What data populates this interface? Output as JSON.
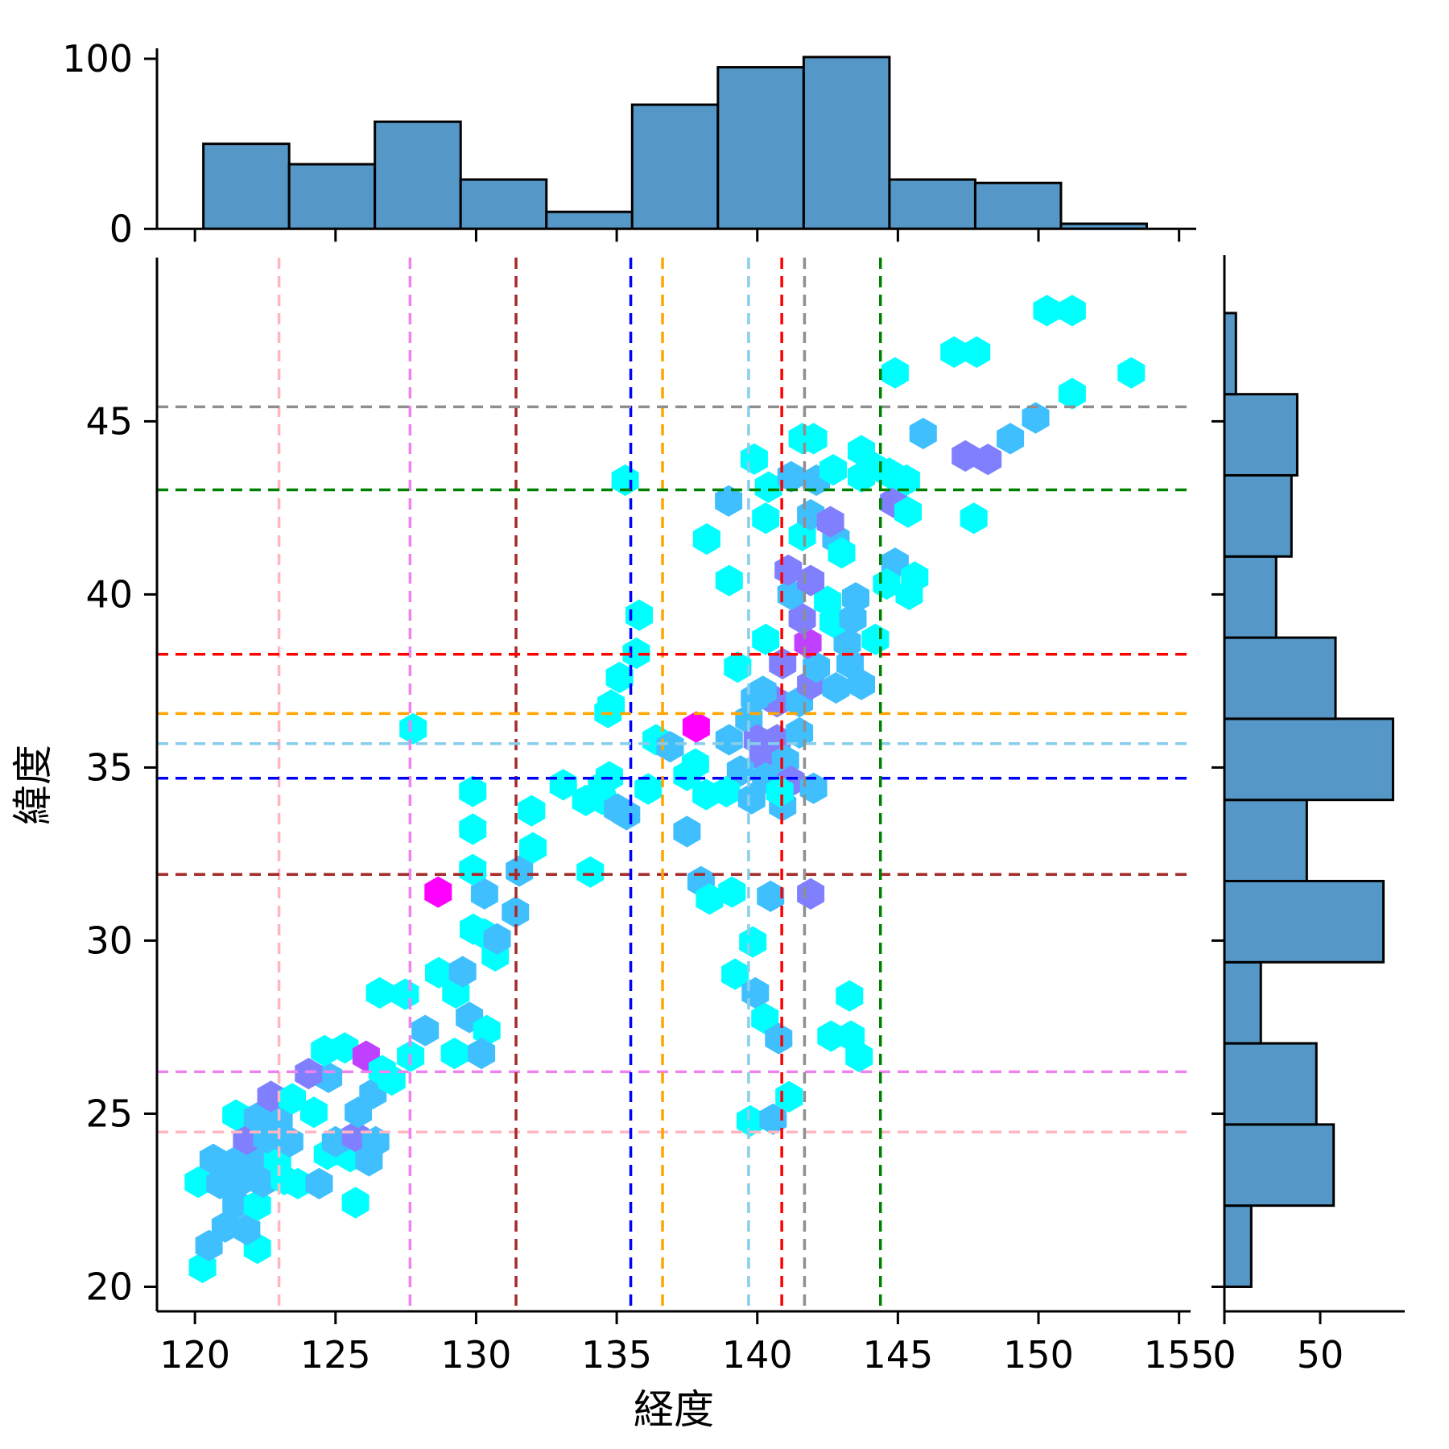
{
  "axes": {
    "xlabel": "経度",
    "ylabel": "緯度"
  },
  "chart_data": [
    {
      "type": "bar",
      "id": "top-marginal-histogram",
      "orientation": "vertical",
      "xlabel": "経度",
      "ylabel": "",
      "bin_start": 120.3,
      "bin_width": 3.05,
      "values": [
        50,
        38,
        63,
        29,
        10,
        73,
        95,
        101,
        29,
        27,
        3
      ],
      "y_ticks": [
        0,
        100
      ],
      "ylim": [
        0,
        106
      ],
      "bar_color": "#5598C7",
      "bar_edge_color": "#000000",
      "grid": false
    },
    {
      "type": "hexbin",
      "id": "joint-hexbin",
      "title": "",
      "xlabel": "経度",
      "ylabel": "緯度",
      "xlim": [
        118.65,
        155.41
      ],
      "ylim": [
        19.29,
        49.73
      ],
      "x_ticks": [
        120,
        125,
        130,
        135,
        140,
        145,
        150,
        155
      ],
      "y_ticks": [
        20,
        25,
        30,
        35,
        40,
        45
      ],
      "grid": false,
      "colormap": "cool",
      "level_colors": {
        "1": "#00FFFF",
        "2": "#40BFFF",
        "3": "#8080FF",
        "4": "#BF40FF",
        "5": "#FF00FF"
      },
      "hex_width_lon": 0.973,
      "reference_lines": [
        {
          "color": "#FFB6C1",
          "x": 122.99,
          "y": 24.47
        },
        {
          "color": "#EE82EE",
          "x": 127.65,
          "y": 26.21
        },
        {
          "color": "#A52A2A",
          "x": 131.42,
          "y": 31.91
        },
        {
          "color": "#0000FF",
          "x": 135.5,
          "y": 34.69
        },
        {
          "color": "#FFA500",
          "x": 136.63,
          "y": 36.56
        },
        {
          "color": "#87CEEB",
          "x": 139.69,
          "y": 35.69
        },
        {
          "color": "#FF0000",
          "x": 140.87,
          "y": 38.27
        },
        {
          "color": "#8F8F8F",
          "x": 141.68,
          "y": 45.42
        },
        {
          "color": "#008000",
          "x": 144.38,
          "y": 43.02
        }
      ],
      "points": [
        [
          120.27,
          20.56,
          1
        ],
        [
          120.5,
          21.19,
          2
        ],
        [
          122.22,
          21.11,
          1
        ],
        [
          121.08,
          21.73,
          2
        ],
        [
          121.84,
          21.65,
          2
        ],
        [
          121.46,
          22.39,
          2
        ],
        [
          122.22,
          22.35,
          1
        ],
        [
          120.12,
          23.02,
          1
        ],
        [
          120.89,
          22.98,
          2
        ],
        [
          121.65,
          23.06,
          2
        ],
        [
          122.41,
          23.02,
          2
        ],
        [
          123.18,
          23.1,
          1
        ],
        [
          123.66,
          22.98,
          1
        ],
        [
          124.42,
          22.98,
          2
        ],
        [
          125.71,
          22.43,
          1
        ],
        [
          120.65,
          23.68,
          2
        ],
        [
          121.41,
          23.6,
          2
        ],
        [
          122.18,
          23.72,
          2
        ],
        [
          122.94,
          23.68,
          1
        ],
        [
          124.71,
          23.83,
          1
        ],
        [
          125.52,
          23.76,
          1
        ],
        [
          126.19,
          23.64,
          2
        ],
        [
          121.84,
          24.26,
          3
        ],
        [
          122.56,
          24.3,
          2
        ],
        [
          123.37,
          24.19,
          2
        ],
        [
          125.0,
          24.19,
          2
        ],
        [
          125.71,
          24.34,
          3
        ],
        [
          126.43,
          24.19,
          2
        ],
        [
          121.46,
          24.96,
          1
        ],
        [
          122.22,
          24.88,
          2
        ],
        [
          122.99,
          24.81,
          2
        ],
        [
          124.23,
          25.04,
          1
        ],
        [
          125.81,
          25.04,
          2
        ],
        [
          122.7,
          25.5,
          3
        ],
        [
          123.46,
          25.43,
          1
        ],
        [
          124.75,
          26.05,
          2
        ],
        [
          126.33,
          25.58,
          2
        ],
        [
          127.0,
          25.97,
          1
        ],
        [
          124.04,
          26.16,
          3
        ],
        [
          124.61,
          26.82,
          1
        ],
        [
          125.33,
          26.9,
          1
        ],
        [
          126.09,
          26.66,
          4
        ],
        [
          126.66,
          26.24,
          1
        ],
        [
          127.67,
          26.66,
          1
        ],
        [
          128.19,
          27.4,
          2
        ],
        [
          129.76,
          27.78,
          2
        ],
        [
          130.38,
          27.4,
          1
        ],
        [
          129.23,
          26.74,
          1
        ],
        [
          130.19,
          26.74,
          2
        ],
        [
          126.57,
          28.49,
          1
        ],
        [
          127.48,
          28.45,
          1
        ],
        [
          129.28,
          28.49,
          1
        ],
        [
          128.67,
          29.07,
          1
        ],
        [
          129.52,
          29.1,
          2
        ],
        [
          130.68,
          29.56,
          1
        ],
        [
          129.9,
          30.33,
          1
        ],
        [
          130.3,
          30.19,
          1
        ],
        [
          130.75,
          30.05,
          2
        ],
        [
          128.65,
          31.4,
          5
        ],
        [
          130.3,
          31.35,
          2
        ],
        [
          131.4,
          30.82,
          2
        ],
        [
          129.88,
          32.05,
          1
        ],
        [
          131.54,
          32.01,
          2
        ],
        [
          129.88,
          33.22,
          1
        ],
        [
          129.88,
          34.31,
          1
        ],
        [
          132.02,
          32.68,
          1
        ],
        [
          134.06,
          31.98,
          1
        ],
        [
          131.97,
          33.75,
          1
        ],
        [
          133.1,
          34.5,
          1
        ],
        [
          133.9,
          34.05,
          1
        ],
        [
          134.49,
          34.08,
          1
        ],
        [
          135.35,
          33.64,
          2
        ],
        [
          134.46,
          34.45,
          1
        ],
        [
          134.74,
          34.73,
          1
        ],
        [
          135.03,
          33.8,
          2
        ],
        [
          136.12,
          34.38,
          1
        ],
        [
          137.5,
          34.77,
          1
        ],
        [
          137.5,
          33.15,
          2
        ],
        [
          138.18,
          34.22,
          1
        ],
        [
          136.4,
          35.8,
          1
        ],
        [
          136.9,
          35.6,
          2
        ],
        [
          137.8,
          35.1,
          1
        ],
        [
          134.69,
          36.59,
          1
        ],
        [
          127.76,
          36.12,
          1
        ],
        [
          134.8,
          36.8,
          1
        ],
        [
          135.1,
          37.6,
          1
        ],
        [
          135.7,
          38.3,
          1
        ],
        [
          135.8,
          39.4,
          1
        ],
        [
          135.3,
          43.3,
          1
        ],
        [
          137.83,
          36.17,
          5
        ],
        [
          139.0,
          35.8,
          2
        ],
        [
          139.7,
          36.4,
          2
        ],
        [
          140.0,
          35.8,
          3
        ],
        [
          140.7,
          35.8,
          3
        ],
        [
          141.5,
          36.0,
          2
        ],
        [
          140.2,
          35.3,
          3
        ],
        [
          141.0,
          35.2,
          2
        ],
        [
          139.4,
          34.9,
          2
        ],
        [
          140.3,
          34.7,
          2
        ],
        [
          141.2,
          34.6,
          3
        ],
        [
          142.0,
          34.4,
          2
        ],
        [
          140.9,
          33.9,
          2
        ],
        [
          138.9,
          34.3,
          1
        ],
        [
          139.8,
          34.1,
          2
        ],
        [
          140.8,
          34.3,
          1
        ],
        [
          138.0,
          31.7,
          2
        ],
        [
          138.3,
          31.2,
          1
        ],
        [
          139.1,
          31.4,
          1
        ],
        [
          140.47,
          31.28,
          2
        ],
        [
          141.9,
          31.35,
          3
        ],
        [
          139.84,
          29.96,
          1
        ],
        [
          139.21,
          29.03,
          1
        ],
        [
          139.93,
          28.49,
          2
        ],
        [
          140.27,
          27.75,
          1
        ],
        [
          140.76,
          27.17,
          2
        ],
        [
          143.28,
          28.4,
          1
        ],
        [
          142.62,
          27.24,
          1
        ],
        [
          143.33,
          27.24,
          1
        ],
        [
          143.62,
          26.65,
          1
        ],
        [
          141.13,
          25.49,
          1
        ],
        [
          139.75,
          24.79,
          1
        ],
        [
          140.56,
          24.84,
          2
        ],
        [
          140.7,
          36.9,
          3
        ],
        [
          141.5,
          36.9,
          2
        ],
        [
          140.2,
          37.2,
          2
        ],
        [
          141.9,
          37.4,
          3
        ],
        [
          142.8,
          37.3,
          2
        ],
        [
          143.7,
          37.4,
          2
        ],
        [
          139.9,
          37.0,
          2
        ],
        [
          140.9,
          38.0,
          3
        ],
        [
          142.1,
          37.9,
          2
        ],
        [
          143.3,
          38.0,
          2
        ],
        [
          139.3,
          37.9,
          1
        ],
        [
          140.3,
          38.7,
          1
        ],
        [
          141.8,
          38.6,
          4
        ],
        [
          143.2,
          38.6,
          2
        ],
        [
          144.2,
          38.7,
          1
        ],
        [
          141.6,
          39.3,
          3
        ],
        [
          142.7,
          39.2,
          1
        ],
        [
          143.4,
          39.3,
          2
        ],
        [
          141.2,
          40.0,
          2
        ],
        [
          142.5,
          39.8,
          1
        ],
        [
          143.5,
          39.9,
          2
        ],
        [
          141.9,
          40.4,
          3
        ],
        [
          139.0,
          40.4,
          1
        ],
        [
          141.1,
          40.7,
          3
        ],
        [
          144.9,
          40.9,
          2
        ],
        [
          145.6,
          40.5,
          1
        ],
        [
          144.6,
          40.3,
          1
        ],
        [
          145.4,
          40.0,
          1
        ],
        [
          141.6,
          41.7,
          1
        ],
        [
          142.8,
          41.6,
          2
        ],
        [
          143.0,
          41.2,
          1
        ],
        [
          138.2,
          41.6,
          1
        ],
        [
          140.3,
          42.2,
          1
        ],
        [
          141.9,
          42.3,
          2
        ],
        [
          142.6,
          42.1,
          3
        ],
        [
          147.7,
          42.2,
          1
        ],
        [
          138.98,
          42.7,
          2
        ],
        [
          144.85,
          42.66,
          3
        ],
        [
          145.36,
          42.38,
          1
        ],
        [
          139.89,
          43.91,
          1
        ],
        [
          140.4,
          43.1,
          1
        ],
        [
          141.2,
          43.4,
          2
        ],
        [
          142.1,
          43.3,
          2
        ],
        [
          142.7,
          43.6,
          1
        ],
        [
          143.7,
          43.4,
          1
        ],
        [
          144.1,
          43.7,
          1
        ],
        [
          144.7,
          43.5,
          1
        ],
        [
          145.3,
          43.3,
          1
        ],
        [
          143.7,
          44.15,
          1
        ],
        [
          145.9,
          44.65,
          2
        ],
        [
          147.4,
          44.0,
          3
        ],
        [
          148.2,
          43.9,
          3
        ],
        [
          149.0,
          44.5,
          2
        ],
        [
          141.6,
          44.5,
          1
        ],
        [
          142.0,
          44.5,
          1
        ],
        [
          149.9,
          45.1,
          2
        ],
        [
          151.2,
          45.8,
          1
        ],
        [
          144.9,
          46.4,
          1
        ],
        [
          153.3,
          46.4,
          1
        ],
        [
          147.0,
          47.0,
          1
        ],
        [
          147.8,
          47.0,
          1
        ],
        [
          150.3,
          48.2,
          1
        ],
        [
          151.2,
          48.2,
          1
        ]
      ]
    },
    {
      "type": "bar",
      "id": "right-marginal-histogram",
      "orientation": "horizontal",
      "xlabel": "",
      "ylabel": "緯度",
      "bin_start": 20.0,
      "bin_width": 2.344,
      "values": [
        14,
        57,
        48,
        19,
        83,
        43,
        88,
        58,
        27,
        35,
        38,
        6
      ],
      "x_ticks": [
        0,
        50
      ],
      "xlim": [
        0,
        94
      ],
      "bar_color": "#5598C7",
      "bar_edge_color": "#000000",
      "grid": false
    }
  ]
}
